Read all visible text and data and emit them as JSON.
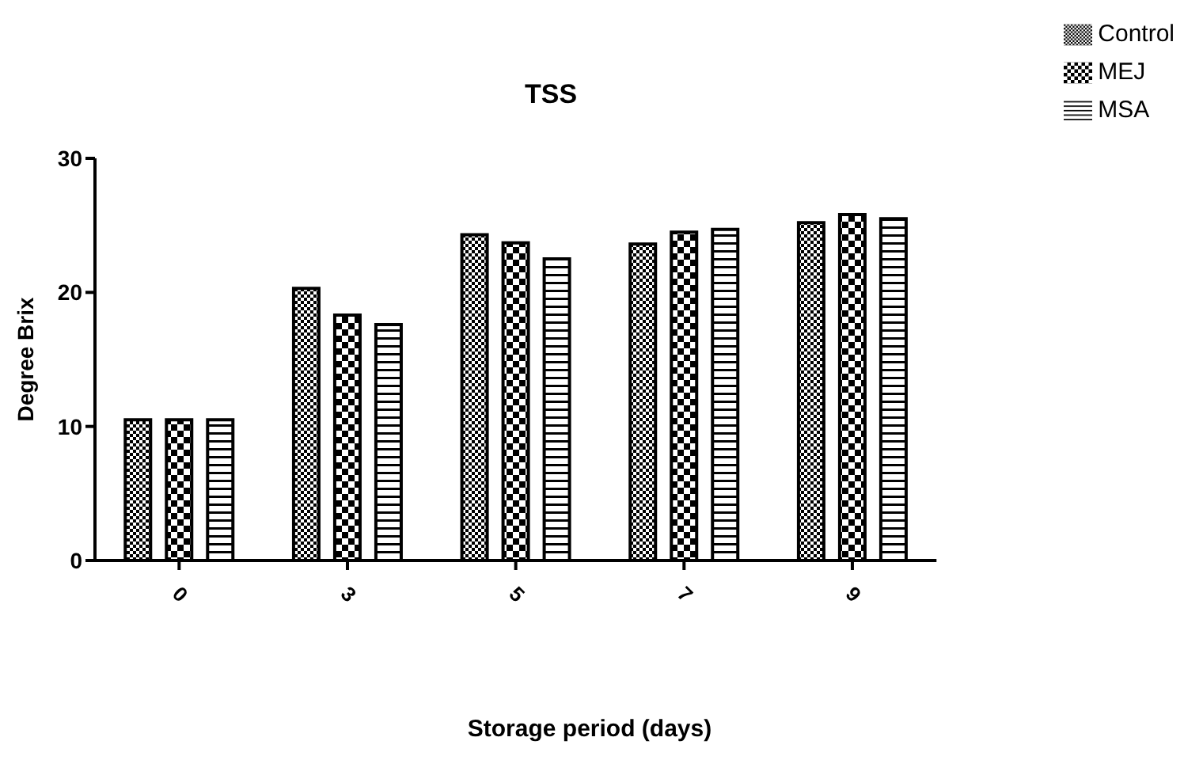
{
  "chart_data": {
    "type": "bar",
    "title": "TSS",
    "xlabel": "Storage period (days)",
    "ylabel": "Degree Brix",
    "categories": [
      "0",
      "3",
      "5",
      "7",
      "9"
    ],
    "series": [
      {
        "name": "Control",
        "color": "#000000",
        "values": [
          10.5,
          20.3,
          24.3,
          23.6,
          25.2
        ]
      },
      {
        "name": "MEJ",
        "color": "#000000",
        "values": [
          10.5,
          18.3,
          23.7,
          24.5,
          25.8
        ]
      },
      {
        "name": "MSA",
        "color": "#000000",
        "values": [
          10.5,
          17.6,
          22.5,
          24.7,
          25.5
        ]
      }
    ],
    "ylim": [
      0,
      30
    ],
    "yticks": [
      0,
      10,
      20,
      30
    ],
    "grid": false,
    "legend": "top right"
  }
}
